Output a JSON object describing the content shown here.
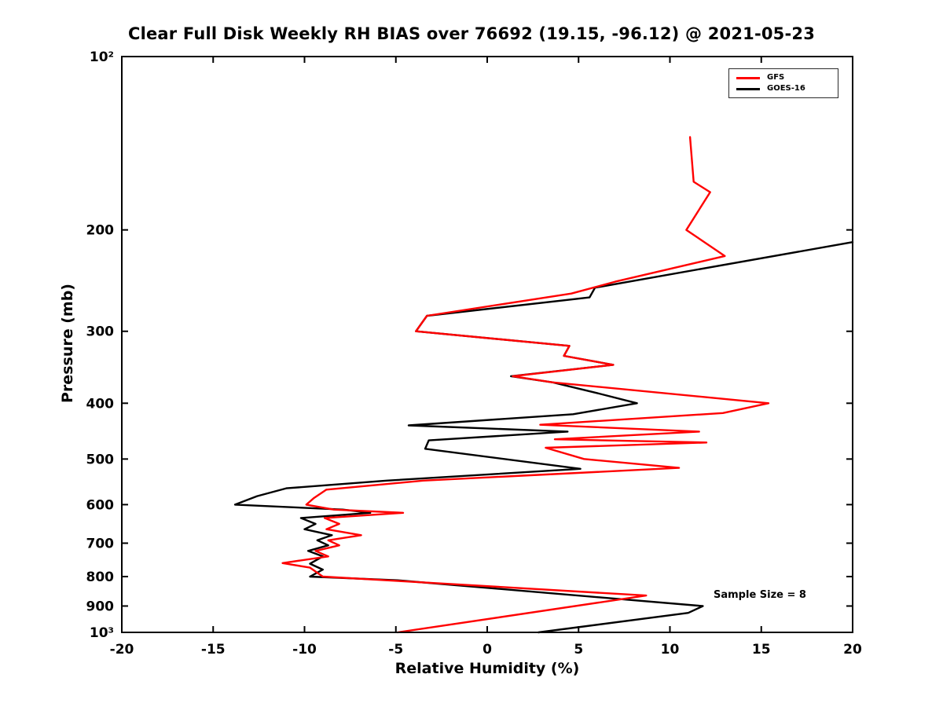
{
  "chart_data": {
    "type": "line",
    "title": "Clear Full Disk Weekly RH BIAS over 76692 (19.15, -96.12) @ 2021-05-23",
    "xlabel": "Relative Humidity (%)",
    "ylabel": "Pressure (mb)",
    "xlim": [
      -20,
      20
    ],
    "ylim": [
      100,
      1000
    ],
    "y_scale": "log",
    "y_inverted": true,
    "grid": false,
    "x_ticks": [
      -20,
      -15,
      -10,
      -5,
      0,
      5,
      10,
      15,
      20
    ],
    "y_ticks": [
      {
        "value": 100,
        "label": "10²"
      },
      {
        "value": 200,
        "label": "200"
      },
      {
        "value": 300,
        "label": "300"
      },
      {
        "value": 400,
        "label": "400"
      },
      {
        "value": 500,
        "label": "500"
      },
      {
        "value": 600,
        "label": "600"
      },
      {
        "value": 700,
        "label": "700"
      },
      {
        "value": 800,
        "label": "800"
      },
      {
        "value": 900,
        "label": "900"
      },
      {
        "value": 1000,
        "label": "10³"
      }
    ],
    "legend": {
      "position": "top-right",
      "entries": [
        {
          "name": "GFS",
          "color": "#ff0000"
        },
        {
          "name": "GOES-16",
          "color": "#000000"
        }
      ]
    },
    "annotation": "Sample Size = 8",
    "series": [
      {
        "name": "GFS",
        "color": "#ff0000",
        "points_format": "[pressure_mb, rh_bias_percent]",
        "points": [
          [
            138,
            11.1
          ],
          [
            165,
            11.3
          ],
          [
            172,
            12.2
          ],
          [
            200,
            10.9
          ],
          [
            222,
            13.0
          ],
          [
            246,
            7.0
          ],
          [
            258,
            4.6
          ],
          [
            282,
            -3.3
          ],
          [
            300,
            -3.9
          ],
          [
            318,
            4.5
          ],
          [
            331,
            4.2
          ],
          [
            343,
            6.9
          ],
          [
            359,
            1.4
          ],
          [
            368,
            3.6
          ],
          [
            400,
            15.4
          ],
          [
            416,
            12.9
          ],
          [
            436,
            2.9
          ],
          [
            448,
            11.6
          ],
          [
            462,
            3.7
          ],
          [
            468,
            12.0
          ],
          [
            478,
            3.2
          ],
          [
            500,
            5.3
          ],
          [
            518,
            10.5
          ],
          [
            545,
            -3.5
          ],
          [
            565,
            -8.8
          ],
          [
            585,
            -9.5
          ],
          [
            600,
            -9.9
          ],
          [
            612,
            -8.4
          ],
          [
            620,
            -4.6
          ],
          [
            633,
            -8.9
          ],
          [
            648,
            -8.1
          ],
          [
            662,
            -8.8
          ],
          [
            678,
            -6.9
          ],
          [
            692,
            -8.7
          ],
          [
            706,
            -8.1
          ],
          [
            722,
            -9.4
          ],
          [
            738,
            -8.7
          ],
          [
            758,
            -11.2
          ],
          [
            772,
            -9.7
          ],
          [
            800,
            -9.0
          ],
          [
            815,
            -4.6
          ],
          [
            863,
            8.7
          ],
          [
            1000,
            -4.9
          ]
        ]
      },
      {
        "name": "GOES-16",
        "color": "#000000",
        "points_format": "[pressure_mb, rh_bias_percent]",
        "points": [
          [
            210,
            20.0
          ],
          [
            252,
            5.9
          ],
          [
            262,
            5.6
          ],
          [
            282,
            -3.3
          ],
          [
            300,
            -3.9
          ],
          [
            318,
            4.5
          ],
          [
            331,
            4.2
          ],
          [
            343,
            6.9
          ],
          [
            359,
            1.3
          ],
          [
            368,
            3.6
          ],
          [
            384,
            6.0
          ],
          [
            400,
            8.2
          ],
          [
            418,
            4.7
          ],
          [
            437,
            -4.3
          ],
          [
            448,
            4.4
          ],
          [
            464,
            -3.2
          ],
          [
            480,
            -3.4
          ],
          [
            520,
            5.1
          ],
          [
            545,
            -5.5
          ],
          [
            562,
            -11.0
          ],
          [
            580,
            -12.6
          ],
          [
            600,
            -13.8
          ],
          [
            612,
            -7.9
          ],
          [
            620,
            -6.4
          ],
          [
            633,
            -10.2
          ],
          [
            648,
            -9.4
          ],
          [
            662,
            -10.0
          ],
          [
            678,
            -8.5
          ],
          [
            692,
            -9.3
          ],
          [
            706,
            -8.7
          ],
          [
            722,
            -9.8
          ],
          [
            738,
            -9.0
          ],
          [
            760,
            -9.7
          ],
          [
            778,
            -9.0
          ],
          [
            800,
            -9.7
          ],
          [
            812,
            -4.9
          ],
          [
            900,
            11.8
          ],
          [
            925,
            11.0
          ],
          [
            1000,
            2.8
          ]
        ]
      }
    ]
  }
}
